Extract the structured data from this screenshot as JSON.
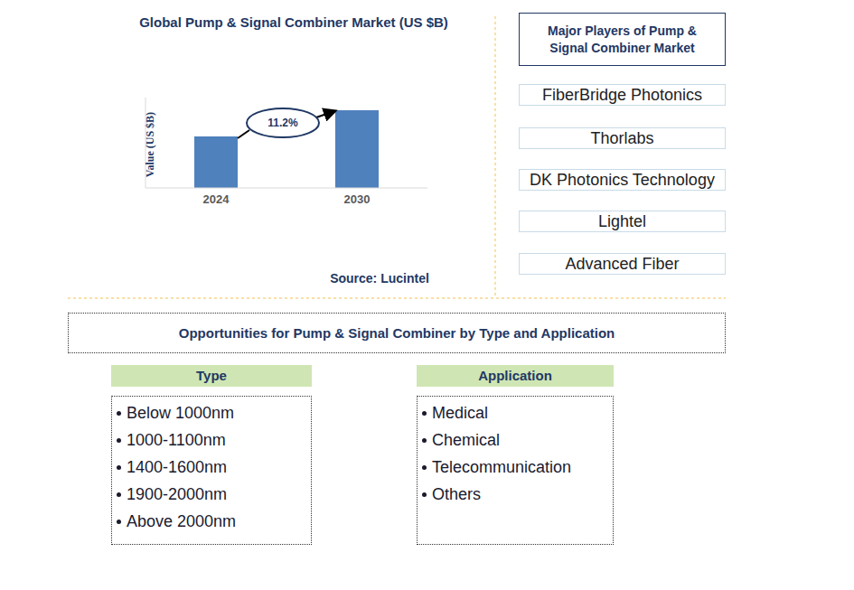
{
  "chart_data": {
    "type": "bar",
    "title": "Global Pump & Signal Combiner Market (US $B)",
    "y_label": "Value (US $B)",
    "categories": [
      "2024",
      "2030"
    ],
    "values": [
      57,
      86
    ],
    "color": "#4f81bd",
    "ylim": [
      0,
      100
    ],
    "yticks": [],
    "tick_labels": "x",
    "grid": false,
    "annotation": "11.2%",
    "source": "Source: Lucintel"
  },
  "players": {
    "title": "Major Players of Pump & Signal Combiner Market",
    "items": [
      "FiberBridge Photonics",
      "Thorlabs",
      "DK Photonics Technology",
      "Lightel",
      "Advanced Fiber"
    ]
  },
  "opportunities": {
    "title": "Opportunities for Pump & Signal Combiner by Type and Application",
    "type": {
      "header": "Type",
      "items": [
        "Below 1000nm",
        "1000-1100nm",
        "1400-1600nm",
        "1900-2000nm",
        "Above 2000nm"
      ]
    },
    "application": {
      "header": "Application",
      "items": [
        "Medical",
        "Chemical",
        "Telecommunication",
        "Others"
      ]
    }
  }
}
